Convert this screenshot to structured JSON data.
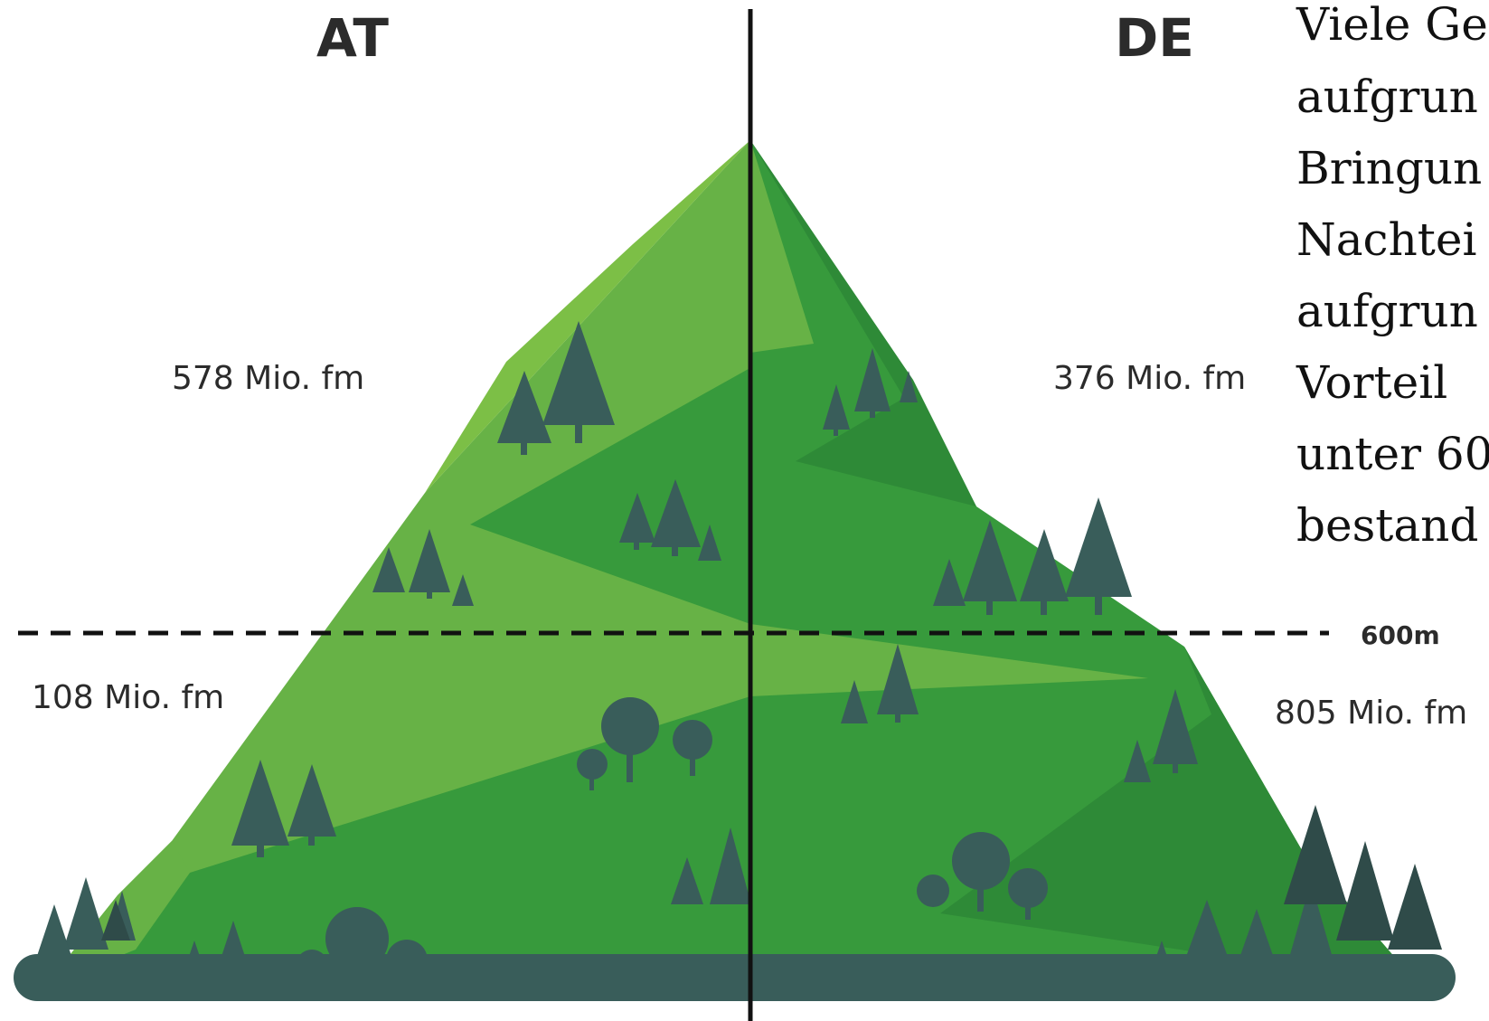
{
  "left_country": "AT",
  "right_country": "DE",
  "altitude_label": "600m",
  "left_upper_volume": "578 Mio. fm",
  "left_lower_volume": "108 Mio. fm",
  "right_upper_volume": "376 Mio. fm",
  "right_lower_volume": "805 Mio. fm",
  "side_text_lines": [
    "Viele Ge",
    "aufgrun",
    "Bringun",
    "Nachtei",
    "aufgrun",
    "Vorteil",
    "unter 60",
    "bestand"
  ],
  "colors": {
    "mountain_light": "#7cbf46",
    "mountain_mid": "#67b246",
    "mountain_dark": "#379a3c",
    "mountain_darker": "#2e8a37",
    "tree": "#395d5a",
    "tree_dark": "#2f4b49",
    "ground": "#395d5a",
    "divider": "#111111"
  }
}
